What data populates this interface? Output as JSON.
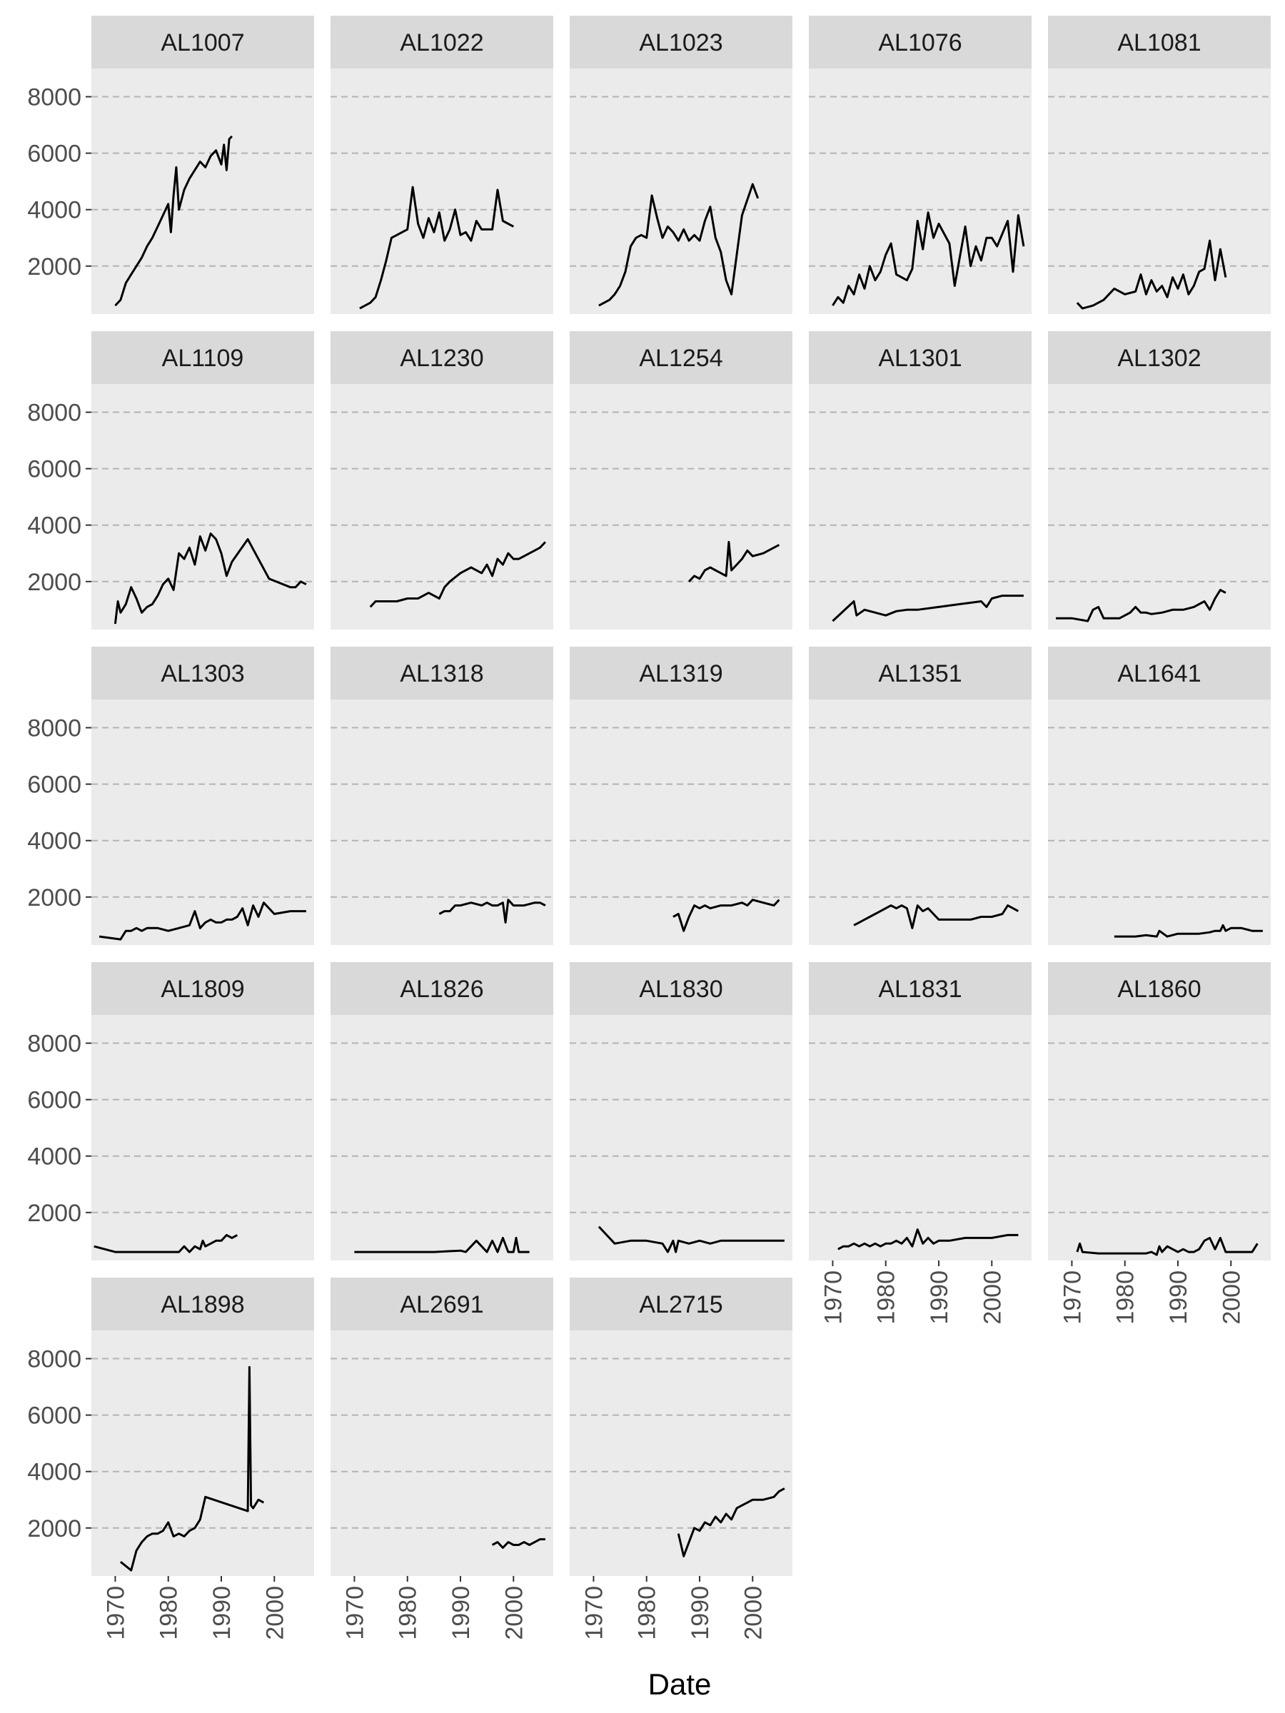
{
  "chart_data": {
    "type": "line",
    "facet": "wrap",
    "xlabel": "Date",
    "ylabel": "",
    "x_unit": "year",
    "xlim": [
      1965.5,
      2007.5
    ],
    "ylim": [
      300,
      9000
    ],
    "x_ticks": [
      1970,
      1980,
      1990,
      2000
    ],
    "y_ticks": [
      2000,
      4000,
      6000,
      8000
    ],
    "grid": "y-major-dashed",
    "colors": {
      "line": "#000000",
      "panel_bg": "#ebebeb",
      "strip_bg": "#d9d9d9",
      "grid": "#b3b3b3"
    },
    "panels": [
      {
        "name": "AL1007",
        "x": [
          1970,
          1971,
          1972,
          1973,
          1974,
          1975,
          1976,
          1977,
          1978,
          1979,
          1980,
          1980.5,
          1981,
          1981.5,
          1982,
          1983,
          1984,
          1985,
          1986,
          1987,
          1988,
          1989,
          1990,
          1990.5,
          1991,
          1991.5,
          1992
        ],
        "y": [
          600,
          800,
          1400,
          1700,
          2000,
          2300,
          2700,
          3000,
          3400,
          3800,
          4200,
          3200,
          4500,
          5500,
          4000,
          4700,
          5100,
          5400,
          5700,
          5500,
          5900,
          6100,
          5600,
          6300,
          5400,
          6500,
          6600
        ]
      },
      {
        "name": "AL1022",
        "x": [
          1971,
          1973,
          1974,
          1975,
          1976,
          1977,
          1978,
          1979,
          1980,
          1981,
          1982,
          1983,
          1984,
          1985,
          1986,
          1987,
          1988,
          1989,
          1990,
          1991,
          1992,
          1993,
          1994,
          1995,
          1996,
          1997,
          1998,
          1999,
          2000
        ],
        "y": [
          500,
          700,
          900,
          1500,
          2200,
          3000,
          3100,
          3200,
          3300,
          4800,
          3500,
          3000,
          3700,
          3200,
          3900,
          2900,
          3300,
          4000,
          3100,
          3200,
          2900,
          3600,
          3300,
          3300,
          3300,
          4700,
          3600,
          3500,
          3400
        ]
      },
      {
        "name": "AL1023",
        "x": [
          1971,
          1973,
          1974,
          1975,
          1976,
          1977,
          1978,
          1979,
          1980,
          1981,
          1982,
          1983,
          1984,
          1985,
          1986,
          1987,
          1988,
          1989,
          1990,
          1991,
          1992,
          1993,
          1994,
          1995,
          1996,
          1998,
          2000,
          2001
        ],
        "y": [
          600,
          800,
          1000,
          1300,
          1800,
          2700,
          3000,
          3100,
          3000,
          4500,
          3700,
          3000,
          3400,
          3200,
          2900,
          3300,
          2900,
          3100,
          2900,
          3600,
          4100,
          3000,
          2500,
          1500,
          1000,
          3800,
          4900,
          4400
        ]
      },
      {
        "name": "AL1076",
        "x": [
          1970,
          1971,
          1972,
          1973,
          1974,
          1975,
          1976,
          1977,
          1978,
          1979,
          1980,
          1981,
          1982,
          1984,
          1985,
          1986,
          1987,
          1988,
          1989,
          1990,
          1992,
          1993,
          1995,
          1996,
          1997,
          1998,
          1999,
          2000,
          2001,
          2003,
          2004,
          2005,
          2006
        ],
        "y": [
          600,
          900,
          700,
          1300,
          1000,
          1700,
          1200,
          2000,
          1500,
          1800,
          2400,
          2800,
          1700,
          1500,
          1900,
          3600,
          2600,
          3900,
          3000,
          3500,
          2800,
          1300,
          3400,
          2000,
          2700,
          2200,
          3000,
          3000,
          2700,
          3600,
          1800,
          3800,
          2700
        ]
      },
      {
        "name": "AL1081",
        "x": [
          1971,
          1972,
          1974,
          1976,
          1978,
          1980,
          1982,
          1983,
          1984,
          1985,
          1986,
          1987,
          1988,
          1989,
          1990,
          1991,
          1992,
          1993,
          1994,
          1995,
          1996,
          1997,
          1998,
          1999
        ],
        "y": [
          700,
          500,
          600,
          800,
          1200,
          1000,
          1100,
          1700,
          1000,
          1500,
          1100,
          1300,
          900,
          1600,
          1200,
          1700,
          1000,
          1300,
          1800,
          1900,
          2900,
          1500,
          2600,
          1600
        ]
      },
      {
        "name": "AL1109",
        "x": [
          1970,
          1970.5,
          1971,
          1972,
          1973,
          1974,
          1975,
          1976,
          1977,
          1978,
          1979,
          1980,
          1981,
          1982,
          1983,
          1984,
          1985,
          1986,
          1987,
          1988,
          1989,
          1990,
          1991,
          1992,
          1995,
          1999,
          2003,
          2004,
          2005,
          2006
        ],
        "y": [
          500,
          1300,
          900,
          1200,
          1800,
          1400,
          900,
          1100,
          1200,
          1500,
          1900,
          2100,
          1700,
          3000,
          2800,
          3200,
          2600,
          3600,
          3100,
          3700,
          3500,
          3000,
          2200,
          2700,
          3500,
          2100,
          1800,
          1800,
          2000,
          1900
        ]
      },
      {
        "name": "AL1230",
        "x": [
          1973,
          1974,
          1976,
          1978,
          1980,
          1982,
          1984,
          1985,
          1986,
          1987,
          1988,
          1990,
          1992,
          1994,
          1995,
          1996,
          1997,
          1998,
          1999,
          2000,
          2001,
          2002,
          2003,
          2004,
          2005,
          2006
        ],
        "y": [
          1100,
          1300,
          1300,
          1300,
          1400,
          1400,
          1600,
          1500,
          1400,
          1800,
          2000,
          2300,
          2500,
          2300,
          2600,
          2200,
          2800,
          2600,
          3000,
          2800,
          2800,
          2900,
          3000,
          3100,
          3200,
          3400
        ]
      },
      {
        "name": "AL1254",
        "x": [
          1988,
          1989,
          1990,
          1991,
          1992,
          1993,
          1994,
          1995,
          1995.5,
          1996,
          1997,
          1998,
          1999,
          2000,
          2002,
          2004,
          2005
        ],
        "y": [
          2000,
          2200,
          2100,
          2400,
          2500,
          2400,
          2300,
          2200,
          3400,
          2400,
          2600,
          2800,
          3100,
          2900,
          3000,
          3200,
          3300
        ]
      },
      {
        "name": "AL1301",
        "x": [
          1970,
          1974,
          1974.5,
          1976,
          1980,
          1982,
          1984,
          1986,
          1990,
          1994,
          1998,
          1999,
          2000,
          2002,
          2006
        ],
        "y": [
          600,
          1300,
          800,
          1000,
          800,
          950,
          1000,
          1000,
          1100,
          1200,
          1300,
          1100,
          1400,
          1500,
          1500
        ]
      },
      {
        "name": "AL1302",
        "x": [
          1967,
          1970,
          1973,
          1974,
          1975,
          1976,
          1977,
          1979,
          1981,
          1982,
          1983,
          1984,
          1985,
          1987,
          1989,
          1991,
          1993,
          1995,
          1996,
          1997,
          1998,
          1999
        ],
        "y": [
          700,
          700,
          600,
          1000,
          1100,
          700,
          700,
          700,
          900,
          1100,
          900,
          900,
          850,
          900,
          1000,
          1000,
          1100,
          1300,
          1000,
          1400,
          1700,
          1600
        ]
      },
      {
        "name": "AL1303",
        "x": [
          1967,
          1971,
          1972,
          1973,
          1974,
          1975,
          1976,
          1978,
          1980,
          1982,
          1984,
          1985,
          1986,
          1987,
          1988,
          1989,
          1990,
          1991,
          1992,
          1993,
          1994,
          1995,
          1996,
          1997,
          1998,
          2000,
          2003,
          2006
        ],
        "y": [
          600,
          500,
          800,
          800,
          900,
          800,
          900,
          900,
          800,
          900,
          1000,
          1500,
          900,
          1100,
          1200,
          1100,
          1100,
          1200,
          1200,
          1300,
          1600,
          1000,
          1700,
          1300,
          1800,
          1400,
          1500,
          1500
        ]
      },
      {
        "name": "AL1318",
        "x": [
          1986,
          1987,
          1988,
          1989,
          1990,
          1992,
          1994,
          1995,
          1996,
          1997,
          1998,
          1998.5,
          1999,
          2000,
          2002,
          2004,
          2005,
          2006
        ],
        "y": [
          1400,
          1500,
          1500,
          1700,
          1700,
          1800,
          1700,
          1800,
          1700,
          1700,
          1800,
          1100,
          1900,
          1700,
          1700,
          1800,
          1800,
          1700
        ]
      },
      {
        "name": "AL1319",
        "x": [
          1985,
          1986,
          1987,
          1988,
          1989,
          1990,
          1991,
          1992,
          1994,
          1996,
          1998,
          1999,
          2000,
          2002,
          2004,
          2005
        ],
        "y": [
          1300,
          1400,
          800,
          1300,
          1700,
          1600,
          1700,
          1600,
          1700,
          1700,
          1800,
          1700,
          1900,
          1800,
          1700,
          1900
        ]
      },
      {
        "name": "AL1351",
        "x": [
          1974,
          1975,
          1976,
          1977,
          1978,
          1979,
          1980,
          1981,
          1982,
          1983,
          1984,
          1985,
          1986,
          1987,
          1988,
          1990,
          1992,
          1994,
          1996,
          1998,
          2000,
          2002,
          2003,
          2004,
          2005
        ],
        "y": [
          1000,
          1100,
          1200,
          1300,
          1400,
          1500,
          1600,
          1700,
          1600,
          1700,
          1600,
          900,
          1700,
          1500,
          1600,
          1200,
          1200,
          1200,
          1200,
          1300,
          1300,
          1400,
          1700,
          1600,
          1500
        ]
      },
      {
        "name": "AL1641",
        "x": [
          1978,
          1980,
          1982,
          1984,
          1986,
          1986.5,
          1988,
          1990,
          1992,
          1994,
          1996,
          1997,
          1998,
          1998.5,
          1999,
          2000,
          2002,
          2004,
          2006
        ],
        "y": [
          600,
          600,
          600,
          650,
          600,
          800,
          600,
          700,
          700,
          700,
          750,
          800,
          800,
          1000,
          800,
          900,
          900,
          800,
          800
        ]
      },
      {
        "name": "AL1809",
        "x": [
          1966,
          1970,
          1972,
          1975,
          1978,
          1980,
          1982,
          1983,
          1984,
          1985,
          1986,
          1986.5,
          1987,
          1988,
          1989,
          1990,
          1991,
          1992,
          1993
        ],
        "y": [
          800,
          600,
          600,
          600,
          600,
          600,
          600,
          800,
          600,
          800,
          700,
          1000,
          800,
          900,
          1000,
          1000,
          1200,
          1100,
          1200
        ]
      },
      {
        "name": "AL1826",
        "x": [
          1970,
          1975,
          1980,
          1985,
          1990,
          1991,
          1993,
          1995,
          1996,
          1997,
          1998,
          1999,
          2000,
          2000.5,
          2001,
          2003
        ],
        "y": [
          600,
          600,
          600,
          600,
          650,
          600,
          1000,
          600,
          1000,
          600,
          1100,
          600,
          600,
          1100,
          600,
          600
        ]
      },
      {
        "name": "AL1830",
        "x": [
          1971,
          1974,
          1977,
          1980,
          1983,
          1984,
          1985,
          1985.5,
          1986,
          1988,
          1990,
          1992,
          1994,
          1996,
          1998,
          2000,
          2002,
          2004,
          2006
        ],
        "y": [
          1500,
          900,
          1000,
          1000,
          900,
          600,
          1000,
          600,
          1000,
          900,
          1000,
          900,
          1000,
          1000,
          1000,
          1000,
          1000,
          1000,
          1000
        ]
      },
      {
        "name": "AL1831",
        "x": [
          1971,
          1972,
          1973,
          1974,
          1975,
          1976,
          1977,
          1978,
          1979,
          1980,
          1981,
          1982,
          1983,
          1984,
          1985,
          1986,
          1987,
          1988,
          1989,
          1990,
          1992,
          1995,
          1998,
          2000,
          2003,
          2005
        ],
        "y": [
          700,
          800,
          800,
          900,
          800,
          900,
          800,
          900,
          800,
          900,
          900,
          1000,
          900,
          1100,
          800,
          1400,
          900,
          1100,
          900,
          1000,
          1000,
          1100,
          1100,
          1100,
          1200,
          1200
        ]
      },
      {
        "name": "AL1860",
        "x": [
          1971,
          1971.5,
          1972,
          1975,
          1978,
          1980,
          1982,
          1984,
          1985,
          1986,
          1986.5,
          1987,
          1988,
          1989,
          1990,
          1991,
          1992,
          1993,
          1994,
          1995,
          1996,
          1997,
          1998,
          1999,
          2000,
          2002,
          2004,
          2005
        ],
        "y": [
          600,
          900,
          600,
          550,
          550,
          550,
          550,
          550,
          600,
          500,
          800,
          600,
          800,
          700,
          600,
          700,
          600,
          600,
          700,
          1000,
          1100,
          700,
          1100,
          600,
          600,
          600,
          600,
          900
        ]
      },
      {
        "name": "AL1898",
        "x": [
          1971,
          1973,
          1974,
          1975,
          1976,
          1977,
          1978,
          1979,
          1980,
          1981,
          1982,
          1983,
          1984,
          1985,
          1986,
          1987,
          1995,
          1995.3,
          1995.6,
          1996,
          1997,
          1998
        ],
        "y": [
          800,
          500,
          1200,
          1500,
          1700,
          1800,
          1800,
          1900,
          2200,
          1700,
          1800,
          1700,
          1900,
          2000,
          2300,
          3100,
          2600,
          7700,
          2800,
          2700,
          3000,
          2900
        ]
      },
      {
        "name": "AL2691",
        "x": [
          1996,
          1997,
          1998,
          1999,
          2000,
          2001,
          2002,
          2003,
          2004,
          2005,
          2006
        ],
        "y": [
          1400,
          1500,
          1300,
          1500,
          1400,
          1400,
          1500,
          1400,
          1500,
          1600,
          1600
        ]
      },
      {
        "name": "AL2715",
        "x": [
          1986,
          1987,
          1988,
          1989,
          1990,
          1991,
          1992,
          1993,
          1994,
          1995,
          1996,
          1997,
          1998,
          1999,
          2000,
          2002,
          2004,
          2005,
          2006
        ],
        "y": [
          1800,
          1000,
          1500,
          2000,
          1900,
          2200,
          2100,
          2400,
          2200,
          2500,
          2300,
          2700,
          2800,
          2900,
          3000,
          3000,
          3100,
          3300,
          3400
        ]
      }
    ]
  }
}
